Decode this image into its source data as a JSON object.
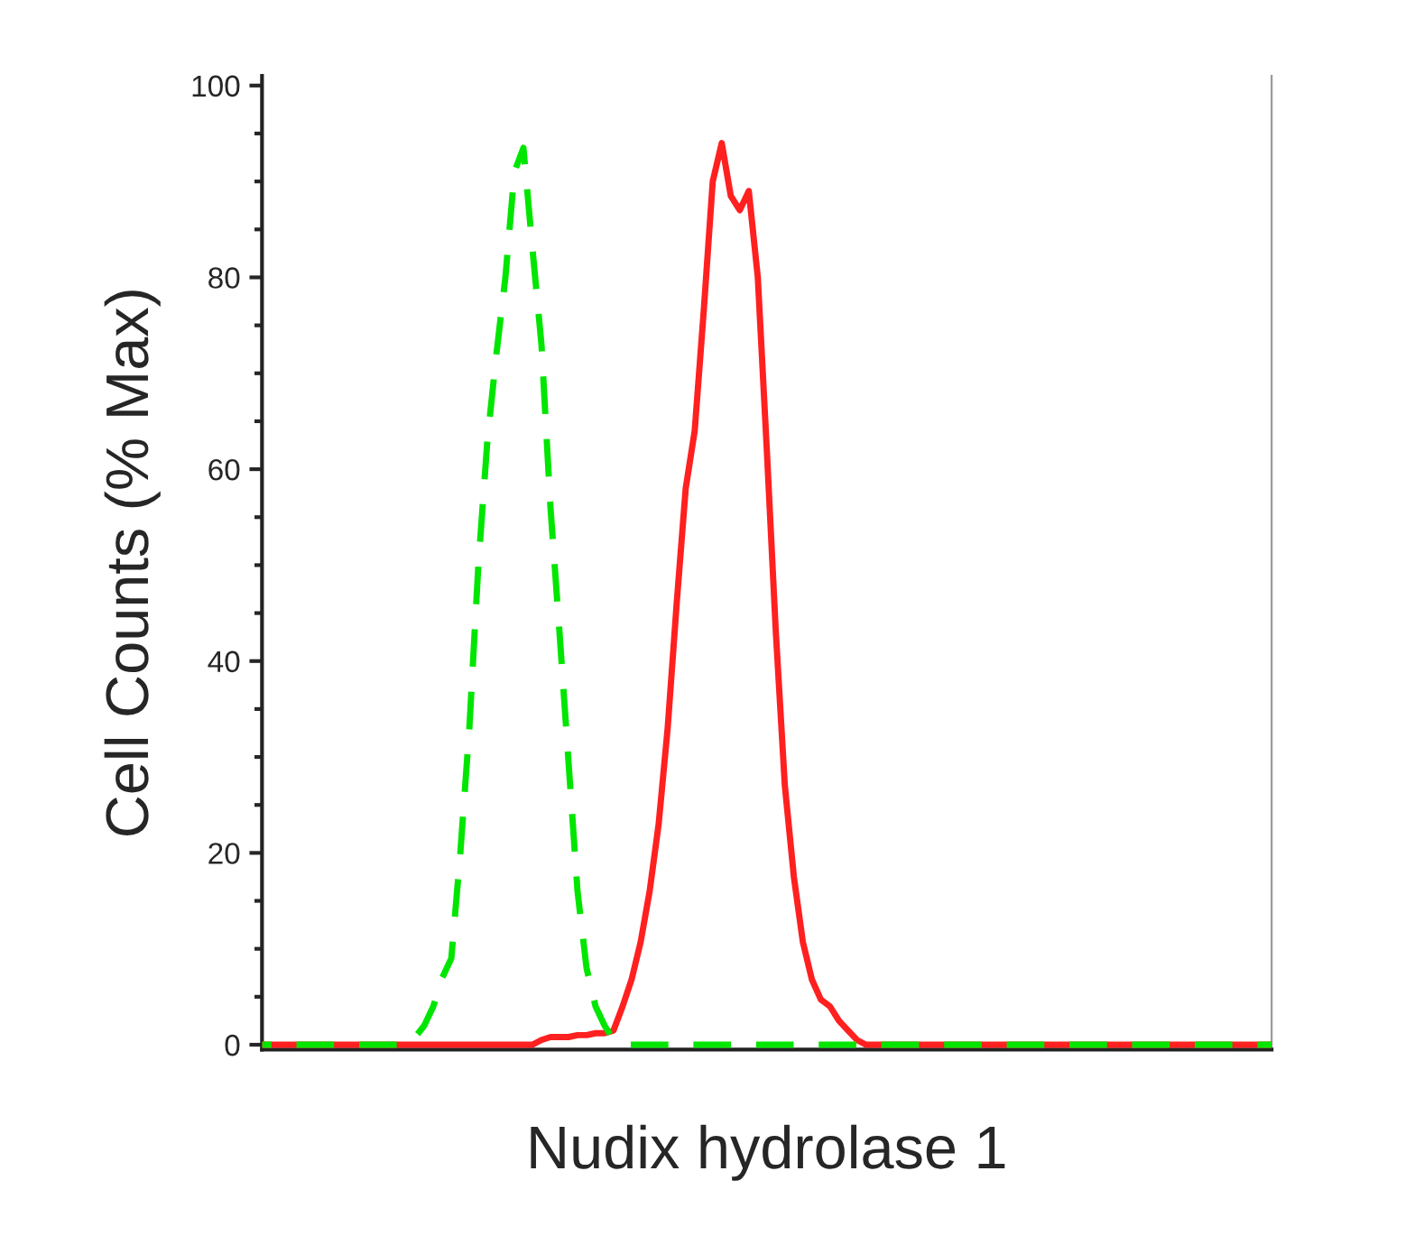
{
  "chart_data": {
    "type": "line",
    "xlabel": "Nudix hydrolase 1",
    "ylabel": "Cell Counts (% Max)",
    "categories": [
      null,
      null,
      null,
      null,
      null,
      null,
      null,
      null,
      null,
      null,
      null,
      null,
      null,
      null,
      null,
      null,
      null,
      null,
      null,
      null,
      null,
      null,
      null,
      null,
      null,
      null,
      null,
      null,
      null,
      null,
      null,
      null,
      null,
      null,
      null,
      null,
      null,
      null,
      null,
      null,
      null,
      null,
      null,
      null,
      null,
      null,
      null,
      null,
      null,
      null,
      null,
      null,
      null,
      null,
      null,
      null,
      null,
      null,
      null,
      null,
      null,
      null,
      null,
      null,
      null,
      null,
      null,
      null,
      null,
      null,
      null,
      null,
      null,
      null,
      null,
      null,
      null,
      null,
      null,
      null,
      null,
      null,
      null,
      null,
      null,
      null,
      null,
      null,
      null,
      null,
      null,
      null,
      null,
      null,
      null,
      null,
      null,
      null,
      null,
      null,
      null,
      null,
      null,
      null,
      null,
      null,
      null,
      null,
      null,
      null,
      null,
      null,
      null
    ],
    "series": [
      {
        "color": "#00e600",
        "line_style": "dashed",
        "values": [
          0,
          0,
          0,
          0,
          0,
          0,
          0,
          0,
          0,
          0,
          0,
          0,
          0,
          0,
          0,
          0,
          0,
          0.8,
          2,
          4,
          7,
          9,
          20,
          33,
          50,
          63,
          72,
          80,
          91,
          93.5,
          83,
          73,
          56,
          43,
          29.5,
          16,
          8,
          4,
          2,
          0.5,
          0,
          0,
          0,
          0,
          0,
          0,
          0,
          0,
          0,
          0,
          0,
          0,
          0,
          0,
          0,
          0,
          0,
          0,
          0,
          0,
          0,
          0,
          0,
          0,
          0,
          0,
          0,
          0,
          0,
          0,
          0,
          0,
          0,
          0,
          0,
          0,
          0,
          0,
          0,
          0,
          0,
          0,
          0,
          0,
          0,
          0,
          0,
          0,
          0,
          0,
          0,
          0,
          0,
          0,
          0,
          0,
          0,
          0,
          0,
          0,
          0,
          0,
          0,
          0,
          0,
          0,
          0,
          0,
          0,
          0,
          0,
          0,
          0
        ]
      },
      {
        "color": "#ff2020",
        "line_style": "solid",
        "values": [
          0,
          0,
          0,
          0,
          0,
          0,
          0,
          0,
          0,
          0,
          0,
          0,
          0,
          0,
          0,
          0,
          0,
          0,
          0,
          0,
          0,
          0,
          0,
          0,
          0,
          0,
          0,
          0,
          0,
          0,
          0,
          0.5,
          0.8,
          0.8,
          0.8,
          1,
          1,
          1.2,
          1.2,
          1.5,
          4,
          6.8,
          10.7,
          16,
          23,
          33,
          46,
          58,
          64,
          76.5,
          90,
          94,
          88.5,
          87,
          89,
          80,
          62,
          43,
          27,
          17.5,
          10.7,
          6.8,
          4.7,
          4,
          2.5,
          1.5,
          0.5,
          0,
          0,
          0,
          0,
          0,
          0,
          0,
          0,
          0,
          0,
          0,
          0,
          0,
          0,
          0,
          0,
          0,
          0,
          0,
          0,
          0,
          0,
          0,
          0,
          0,
          0,
          0,
          0,
          0,
          0,
          0,
          0,
          0,
          0,
          0,
          0,
          0,
          0,
          0,
          0,
          0,
          0,
          0,
          0,
          0,
          0
        ]
      }
    ],
    "ylim": [
      -0.5,
      101
    ],
    "yticks": [
      0,
      {
        "value": 5,
        "label": null
      },
      20,
      {
        "value": 10,
        "label": null
      },
      {
        "value": 15,
        "label": null
      },
      {
        "value": 25,
        "label": null
      },
      {
        "value": 30,
        "label": null
      },
      {
        "value": 35,
        "label": null
      },
      40,
      {
        "value": 45,
        "label": null
      },
      {
        "value": 50,
        "label": null
      },
      {
        "value": 55,
        "label": null
      },
      60,
      {
        "value": 65,
        "label": null
      },
      {
        "value": 70,
        "label": null
      },
      {
        "value": 75,
        "label": null
      },
      80,
      {
        "value": 85,
        "label": null
      },
      {
        "value": 90,
        "label": null
      },
      {
        "value": 95,
        "label": null
      },
      100
    ],
    "tick_labels": "y",
    "grid": false,
    "legend": false
  }
}
